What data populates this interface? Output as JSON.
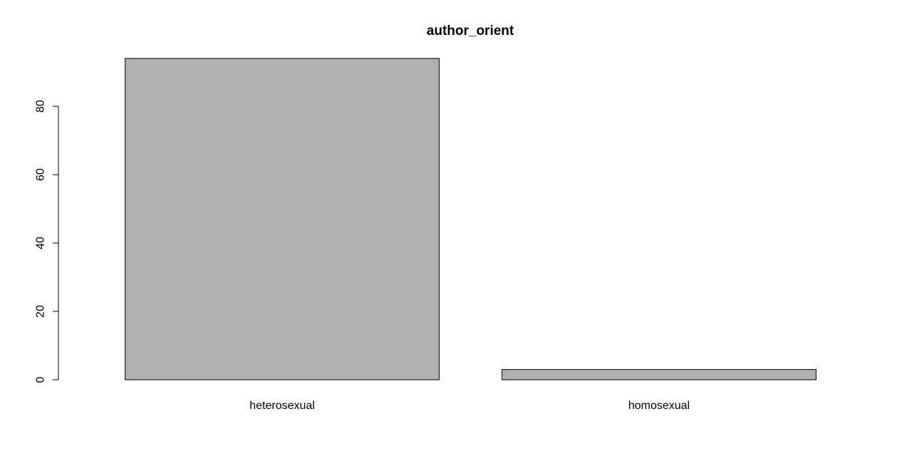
{
  "chart_data": {
    "type": "bar",
    "title": "author_orient",
    "xlabel": "",
    "ylabel": "",
    "categories": [
      "heterosexual",
      "homosexual"
    ],
    "values": [
      94,
      3
    ],
    "ylim": [
      0,
      94
    ],
    "y_ticks": [
      "0",
      "20",
      "40",
      "60",
      "80"
    ],
    "grid": false,
    "legend": "none",
    "bar_color": "#b0b0b0",
    "bar_border_color": "#000000"
  }
}
